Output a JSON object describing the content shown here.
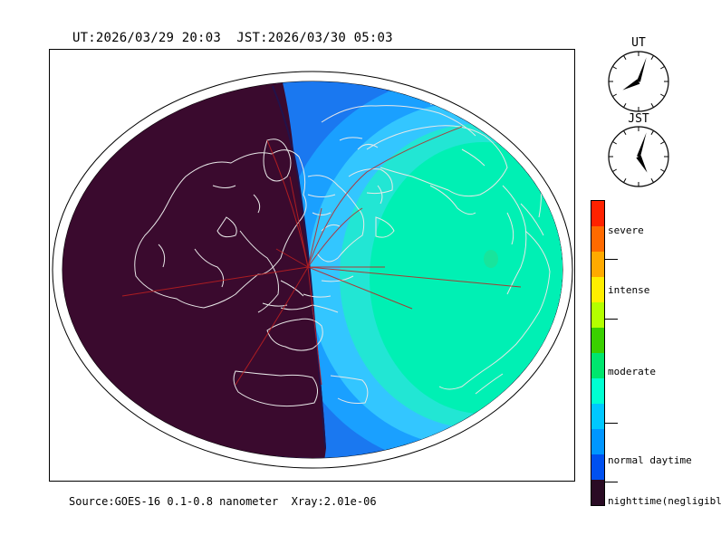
{
  "header": {
    "ut_text": "UT:2026/03/29 20:03",
    "jst_text": "JST:2026/03/30 05:03"
  },
  "clocks": [
    {
      "label": "UT",
      "hour": 20,
      "minute": 3
    },
    {
      "label": "JST",
      "hour": 5,
      "minute": 3
    }
  ],
  "source": {
    "text": "Source:GOES-16 0.1-0.8 nanometer  Xray:2.01e-06"
  },
  "legend": {
    "labels": [
      "severe",
      "intense",
      "moderate",
      "normal daytime",
      "nighttime(negligible)"
    ],
    "colors": [
      "#ff2200",
      "#ff6a00",
      "#ffaa00",
      "#ffee00",
      "#b4ff00",
      "#3ad000",
      "#00e66e",
      "#00ffd2",
      "#00c8ff",
      "#0096ff",
      "#0050f0",
      "#2a0b24"
    ]
  },
  "map": {
    "night_color": "#3a0a2e",
    "day_colors": [
      "#1a78f0",
      "#1aa0ff",
      "#33c6ff",
      "#22e6d4",
      "#00f0b4"
    ],
    "coast_color": "#e8e8e8",
    "path_color": "#c02020"
  }
}
